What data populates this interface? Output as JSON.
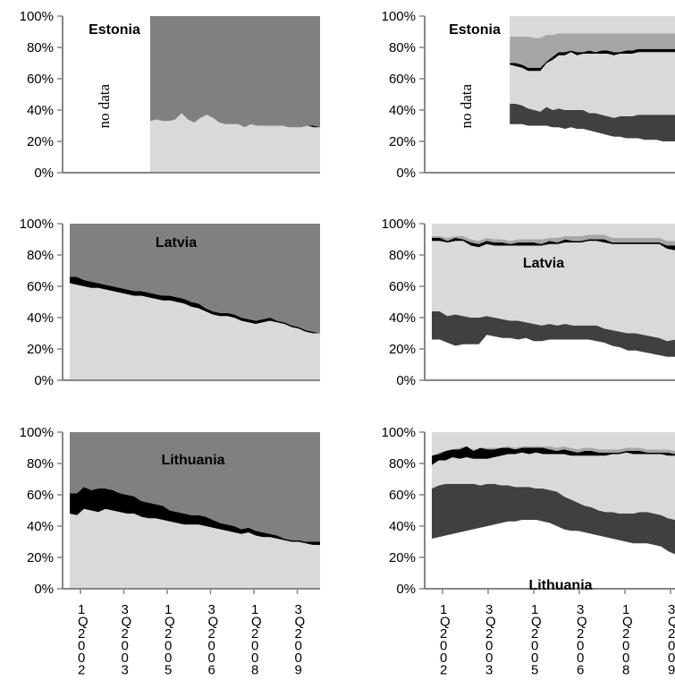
{
  "colors": {
    "top": "#808080",
    "black": "#000000",
    "light": "#d9d9d9",
    "dark": "#404040",
    "mid": "#a6a6a6",
    "axis": "#868686"
  },
  "yticks": [
    "100%",
    "80%",
    "60%",
    "40%",
    "20%",
    "0%"
  ],
  "xticks": [
    {
      "q": "1",
      "y": "2002"
    },
    {
      "q": "3",
      "y": "2003"
    },
    {
      "q": "1",
      "y": "2005"
    },
    {
      "q": "3",
      "y": "2006"
    },
    {
      "q": "1",
      "y": "2008"
    },
    {
      "q": "3",
      "y": "2009"
    }
  ],
  "no_data_label": "no data",
  "chart_data": [
    {
      "type": "area",
      "stacked": "100%",
      "title": "Estonia",
      "no_data_until": 8,
      "ylim": [
        0,
        100
      ],
      "layers": [
        {
          "color": "light",
          "values": [
            33,
            34,
            33,
            33,
            34,
            38,
            34,
            32,
            35,
            37,
            35,
            32,
            31,
            31,
            31,
            29,
            31,
            30,
            30,
            30,
            30,
            30,
            29,
            29,
            29,
            30,
            29,
            29
          ]
        },
        {
          "color": "black",
          "values": [
            0,
            0,
            0,
            0,
            0,
            0,
            0,
            0,
            0,
            0,
            0,
            0,
            0,
            0,
            0,
            0,
            0,
            0,
            0,
            0,
            0,
            0,
            0,
            0,
            0,
            0,
            1,
            0
          ]
        },
        {
          "color": "top",
          "values": [
            67,
            66,
            67,
            67,
            66,
            62,
            66,
            68,
            65,
            63,
            65,
            68,
            69,
            69,
            69,
            71,
            69,
            70,
            70,
            70,
            70,
            70,
            71,
            71,
            71,
            70,
            70,
            71
          ]
        }
      ]
    },
    {
      "type": "area",
      "stacked": "100%",
      "title": "Estonia",
      "no_data_until": 8,
      "ylim": [
        0,
        100
      ],
      "layers": [
        {
          "color": "none",
          "values": [
            31,
            31,
            31,
            30,
            30,
            30,
            30,
            29,
            29,
            28,
            29,
            28,
            28,
            27,
            26,
            25,
            24,
            23,
            23,
            22,
            22,
            22,
            21,
            21,
            21,
            20,
            20,
            20
          ]
        },
        {
          "color": "dark",
          "values": [
            13,
            13,
            12,
            11,
            10,
            9,
            12,
            11,
            12,
            12,
            11,
            12,
            12,
            11,
            12,
            12,
            12,
            12,
            13,
            14,
            14,
            15,
            16,
            16,
            16,
            17,
            17,
            17
          ]
        },
        {
          "color": "light",
          "values": [
            25,
            24,
            24,
            24,
            25,
            26,
            28,
            32,
            34,
            35,
            37,
            35,
            36,
            38,
            38,
            39,
            40,
            40,
            40,
            40,
            40,
            40,
            40,
            40,
            40,
            40,
            40,
            40
          ]
        },
        {
          "color": "black",
          "values": [
            1,
            2,
            2,
            2,
            2,
            2,
            1,
            2,
            2,
            2,
            1,
            2,
            1,
            2,
            1,
            2,
            2,
            2,
            1,
            2,
            2,
            2,
            2,
            2,
            2,
            2,
            2,
            2
          ]
        },
        {
          "color": "mid",
          "values": [
            17,
            17,
            18,
            20,
            19,
            19,
            17,
            14,
            12,
            12,
            11,
            12,
            12,
            11,
            12,
            11,
            11,
            12,
            12,
            11,
            11,
            10,
            10,
            10,
            10,
            10,
            10,
            10
          ]
        },
        {
          "color": "light",
          "values": [
            13,
            13,
            13,
            13,
            14,
            14,
            12,
            12,
            11,
            11,
            11,
            11,
            11,
            11,
            11,
            11,
            11,
            11,
            11,
            11,
            11,
            11,
            11,
            11,
            11,
            11,
            11,
            11
          ]
        }
      ]
    },
    {
      "type": "area",
      "stacked": "100%",
      "title": "Latvia",
      "ylim": [
        0,
        100
      ],
      "layers": [
        {
          "color": "light",
          "values": [
            62,
            61,
            60,
            59,
            59,
            58,
            57,
            56,
            55,
            54,
            54,
            53,
            52,
            51,
            51,
            50,
            49,
            47,
            46,
            44,
            42,
            41,
            41,
            40,
            38,
            37,
            36,
            37,
            38,
            37,
            36,
            34,
            33,
            31,
            30,
            30
          ]
        },
        {
          "color": "black",
          "values": [
            4,
            5,
            4,
            4,
            3,
            3,
            3,
            3,
            3,
            3,
            3,
            3,
            3,
            3,
            3,
            3,
            3,
            3,
            3,
            2,
            2,
            2,
            2,
            2,
            2,
            2,
            2,
            2,
            2,
            1,
            1,
            1,
            1,
            1,
            1,
            0
          ]
        },
        {
          "color": "top",
          "values": [
            34,
            34,
            36,
            37,
            38,
            39,
            40,
            41,
            42,
            43,
            43,
            44,
            45,
            46,
            46,
            47,
            48,
            50,
            51,
            54,
            56,
            57,
            57,
            58,
            60,
            61,
            62,
            61,
            60,
            62,
            63,
            65,
            66,
            68,
            69,
            70
          ]
        }
      ]
    },
    {
      "type": "area",
      "stacked": "100%",
      "title": "Latvia",
      "ylim": [
        0,
        100
      ],
      "layers": [
        {
          "color": "none",
          "values": [
            26,
            26,
            24,
            22,
            23,
            23,
            23,
            29,
            28,
            27,
            27,
            26,
            27,
            25,
            25,
            26,
            26,
            26,
            26,
            26,
            26,
            25,
            24,
            22,
            21,
            19,
            19,
            18,
            17,
            16,
            15,
            15
          ]
        },
        {
          "color": "dark",
          "values": [
            18,
            18,
            17,
            20,
            18,
            17,
            17,
            12,
            12,
            12,
            11,
            12,
            10,
            11,
            10,
            10,
            9,
            10,
            9,
            9,
            9,
            10,
            9,
            10,
            10,
            11,
            11,
            11,
            11,
            11,
            10,
            11
          ]
        },
        {
          "color": "light",
          "values": [
            45,
            45,
            47,
            47,
            48,
            46,
            45,
            46,
            46,
            47,
            48,
            48,
            49,
            50,
            51,
            51,
            52,
            52,
            53,
            53,
            54,
            54,
            55,
            55,
            56,
            57,
            57,
            58,
            59,
            60,
            59,
            57
          ]
        },
        {
          "color": "black",
          "values": [
            2,
            2,
            1,
            2,
            1,
            2,
            2,
            2,
            2,
            2,
            1,
            2,
            2,
            2,
            1,
            2,
            1,
            2,
            1,
            1,
            1,
            1,
            2,
            1,
            1,
            1,
            1,
            1,
            1,
            1,
            2,
            3
          ]
        },
        {
          "color": "mid",
          "values": [
            1,
            1,
            2,
            1,
            2,
            2,
            2,
            2,
            2,
            2,
            2,
            2,
            2,
            2,
            3,
            2,
            3,
            2,
            3,
            3,
            3,
            3,
            3,
            3,
            3,
            3,
            3,
            3,
            3,
            3,
            3,
            3
          ]
        },
        {
          "color": "light",
          "values": [
            8,
            8,
            9,
            8,
            8,
            10,
            11,
            9,
            10,
            10,
            11,
            10,
            10,
            10,
            10,
            9,
            9,
            8,
            8,
            8,
            7,
            7,
            7,
            9,
            9,
            9,
            9,
            9,
            9,
            9,
            11,
            11
          ]
        }
      ]
    },
    {
      "type": "area",
      "stacked": "100%",
      "title": "Lithuania",
      "ylim": [
        0,
        100
      ],
      "layers": [
        {
          "color": "light",
          "values": [
            48,
            47,
            51,
            50,
            49,
            51,
            50,
            49,
            48,
            48,
            46,
            45,
            45,
            44,
            43,
            42,
            41,
            41,
            41,
            40,
            39,
            38,
            37,
            36,
            35,
            36,
            34,
            33,
            33,
            32,
            31,
            30,
            30,
            29,
            28,
            28
          ]
        },
        {
          "color": "black",
          "values": [
            13,
            14,
            14,
            13,
            15,
            13,
            13,
            12,
            12,
            11,
            10,
            10,
            9,
            9,
            7,
            7,
            7,
            6,
            6,
            6,
            5,
            4,
            4,
            4,
            3,
            3,
            3,
            3,
            2,
            2,
            1,
            1,
            1,
            1,
            2,
            2
          ]
        },
        {
          "color": "top",
          "values": [
            39,
            39,
            35,
            37,
            36,
            36,
            37,
            39,
            40,
            41,
            44,
            45,
            46,
            47,
            50,
            51,
            52,
            53,
            53,
            54,
            56,
            58,
            59,
            60,
            62,
            61,
            63,
            64,
            65,
            66,
            68,
            69,
            69,
            70,
            70,
            70
          ]
        }
      ]
    },
    {
      "type": "area",
      "stacked": "100%",
      "title": "Lithuania",
      "ylim": [
        0,
        100
      ],
      "layers": [
        {
          "color": "none",
          "values": [
            32,
            33,
            34,
            35,
            36,
            37,
            38,
            39,
            40,
            41,
            42,
            43,
            43,
            44,
            44,
            44,
            43,
            42,
            40,
            38,
            37,
            37,
            36,
            35,
            34,
            33,
            32,
            31,
            30,
            29,
            29,
            29,
            28,
            27,
            24,
            22
          ]
        },
        {
          "color": "dark",
          "values": [
            32,
            33,
            33,
            32,
            31,
            30,
            29,
            27,
            27,
            26,
            24,
            23,
            22,
            21,
            21,
            20,
            21,
            21,
            22,
            21,
            20,
            18,
            17,
            17,
            16,
            16,
            17,
            17,
            18,
            19,
            20,
            20,
            20,
            20,
            21,
            22
          ]
        },
        {
          "color": "light",
          "values": [
            15,
            16,
            15,
            17,
            16,
            17,
            16,
            17,
            16,
            17,
            19,
            20,
            21,
            22,
            21,
            23,
            22,
            23,
            24,
            27,
            28,
            30,
            32,
            33,
            35,
            36,
            37,
            38,
            39,
            38,
            37,
            37,
            38,
            39,
            40,
            41
          ]
        },
        {
          "color": "black",
          "values": [
            6,
            4,
            6,
            5,
            6,
            7,
            5,
            7,
            6,
            5,
            5,
            4,
            3,
            3,
            4,
            3,
            4,
            3,
            2,
            3,
            3,
            2,
            3,
            3,
            2,
            2,
            1,
            1,
            1,
            2,
            2,
            1,
            1,
            1,
            2,
            1
          ]
        },
        {
          "color": "mid",
          "values": [
            0,
            1,
            0,
            0,
            1,
            0,
            1,
            0,
            1,
            1,
            0,
            1,
            1,
            1,
            1,
            1,
            1,
            2,
            2,
            2,
            2,
            2,
            2,
            2,
            2,
            2,
            2,
            2,
            2,
            2,
            2,
            2,
            2,
            2,
            2,
            2
          ]
        },
        {
          "color": "light",
          "values": [
            15,
            13,
            12,
            11,
            10,
            9,
            11,
            10,
            10,
            10,
            10,
            9,
            10,
            9,
            9,
            9,
            9,
            9,
            10,
            9,
            10,
            11,
            10,
            10,
            11,
            11,
            11,
            11,
            10,
            10,
            10,
            11,
            11,
            11,
            11,
            12
          ]
        }
      ]
    }
  ]
}
